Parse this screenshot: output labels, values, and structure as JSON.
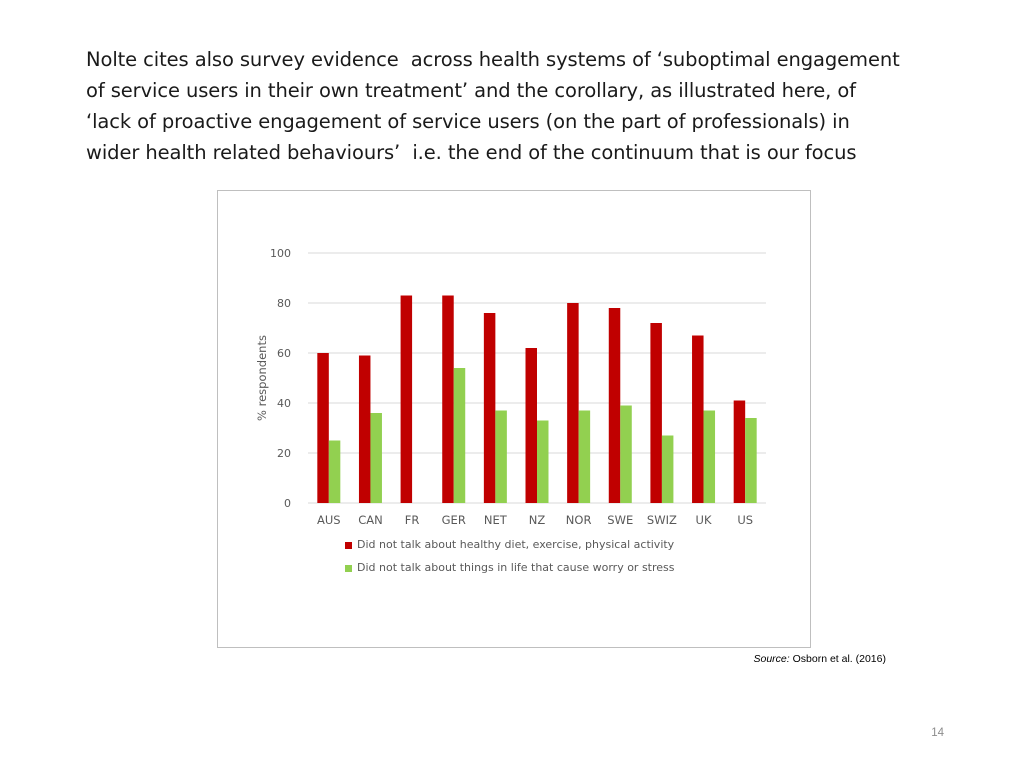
{
  "slide": {
    "text_lines": [
      "Nolte cites also survey evidence  across health systems of ‘suboptimal engagement",
      "of service users in their own treatment’ and the corollary, as illustrated here, of",
      "‘lack of proactive engagement of service users (on the part of professionals) in",
      "wider health related behaviours’  i.e. the end of the continuum that is our focus"
    ],
    "source_label": "Source:",
    "source_text": " Osborn et al. (2016)",
    "page_number": "14"
  },
  "chart_data": {
    "type": "bar",
    "title": "",
    "xlabel": "",
    "ylabel": "% respondents",
    "ylim": [
      0,
      100
    ],
    "yticks": [
      0,
      20,
      40,
      60,
      80,
      100
    ],
    "grid": true,
    "legend_position": "bottom",
    "categories": [
      "AUS",
      "CAN",
      "FR",
      "GER",
      "NET",
      "NZ",
      "NOR",
      "SWE",
      "SWIZ",
      "UK",
      "US"
    ],
    "series": [
      {
        "name": "Did not talk about healthy diet, exercise, physical activity",
        "color": "#c00000",
        "values": [
          60,
          59,
          83,
          83,
          76,
          62,
          80,
          78,
          72,
          67,
          41
        ]
      },
      {
        "name": "Did not talk about things in life that cause worry or  stress",
        "color": "#92d050",
        "values": [
          25,
          36,
          null,
          54,
          37,
          33,
          37,
          39,
          27,
          37,
          34
        ]
      }
    ]
  }
}
